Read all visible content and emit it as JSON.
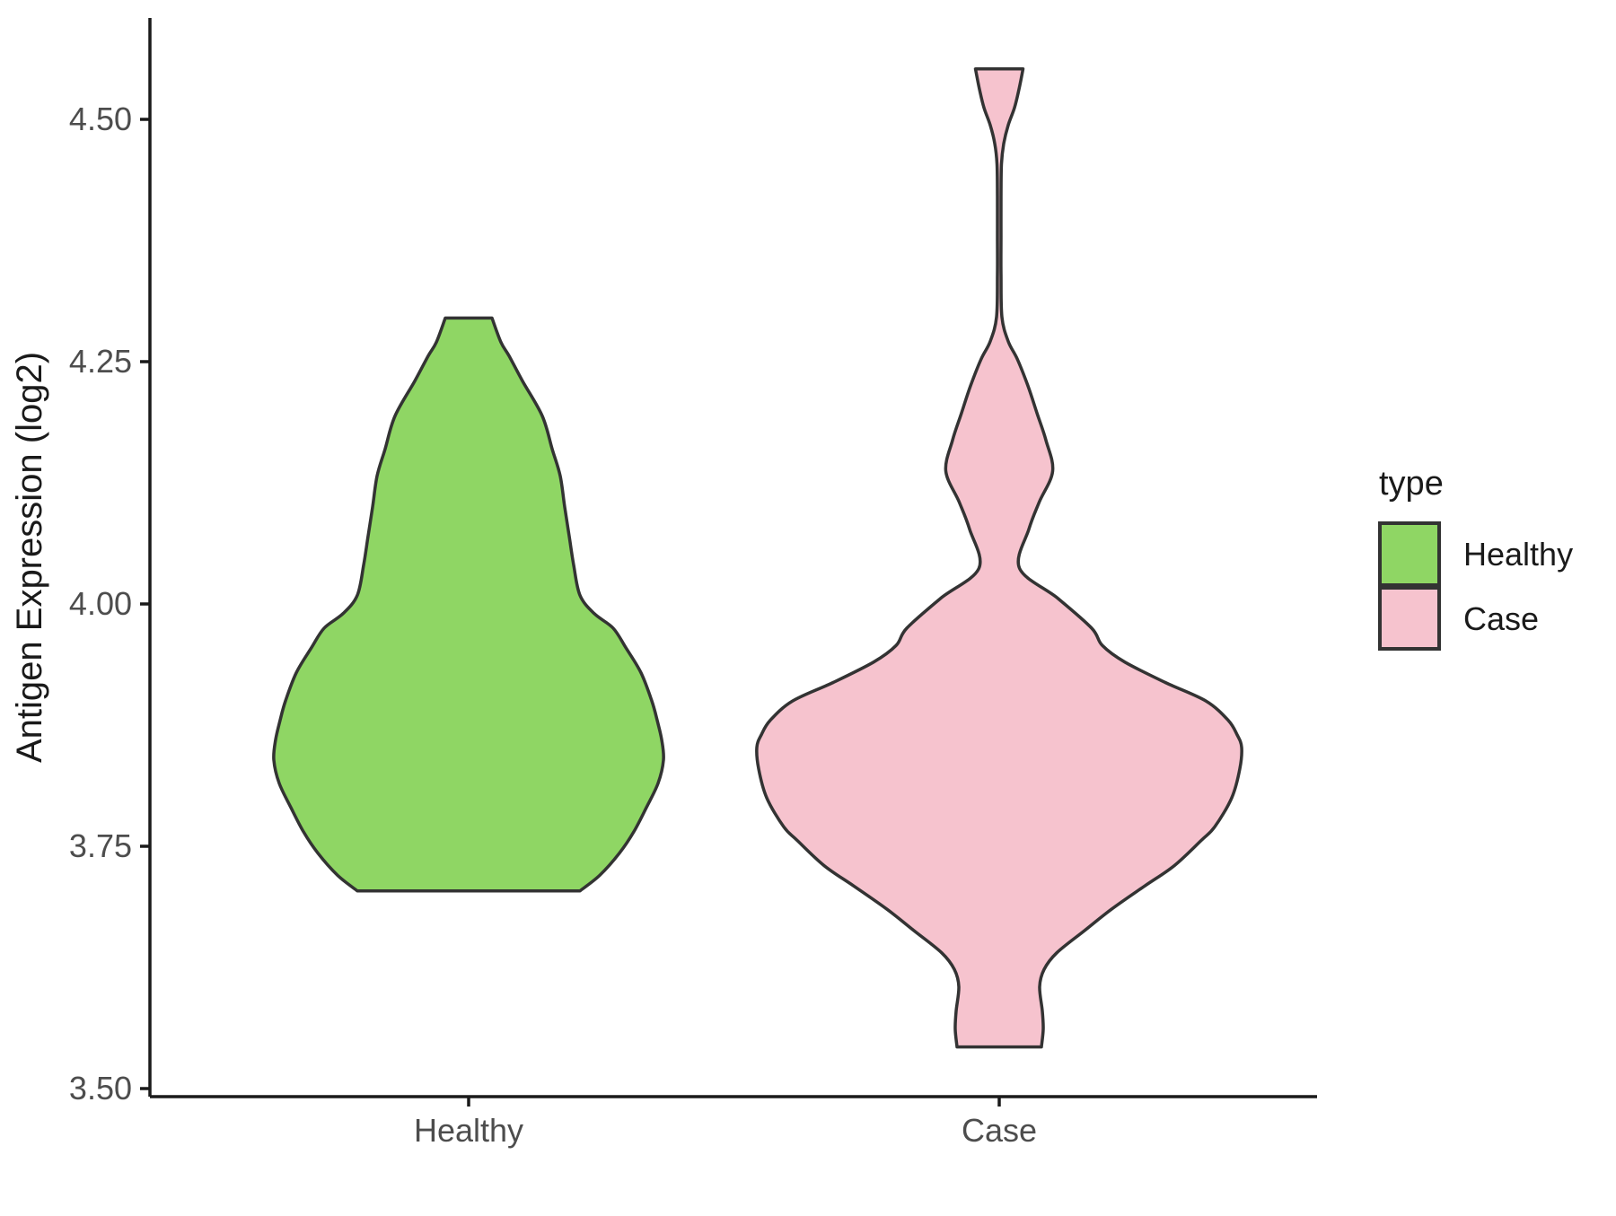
{
  "chart_data": {
    "type": "violin",
    "title": "",
    "y_axis": {
      "label": "Antigen Expression (log2)",
      "ticks": [
        3.5,
        3.75,
        4.0,
        4.25,
        4.5
      ],
      "tick_labels": [
        "3.50",
        "3.75",
        "4.00",
        "4.25",
        "4.50"
      ],
      "range_approx": [
        3.49,
        4.6
      ]
    },
    "x_axis": {
      "categories": [
        "Healthy",
        "Case"
      ]
    },
    "legend": {
      "title": "type",
      "position": "right",
      "entries": [
        {
          "label": "Healthy",
          "color": "#8FD664"
        },
        {
          "label": "Case",
          "color": "#F6C3CE"
        }
      ]
    },
    "grid": false,
    "theme": "classic",
    "series": [
      {
        "name": "Healthy",
        "fill": "#8FD664",
        "outline": "#333333",
        "data_range": [
          3.7,
          4.3
        ],
        "profile": [
          [
            4.295,
            26
          ],
          [
            4.27,
            36
          ],
          [
            4.256,
            45
          ],
          [
            4.23,
            60
          ],
          [
            4.194,
            82
          ],
          [
            4.16,
            93
          ],
          [
            4.132,
            102
          ],
          [
            4.1,
            107
          ],
          [
            4.07,
            112
          ],
          [
            4.04,
            117
          ],
          [
            4.009,
            124
          ],
          [
            3.99,
            140
          ],
          [
            3.975,
            161
          ],
          [
            3.955,
            175
          ],
          [
            3.929,
            192
          ],
          [
            3.9,
            204
          ],
          [
            3.88,
            210
          ],
          [
            3.86,
            215
          ],
          [
            3.839,
            217
          ],
          [
            3.815,
            211
          ],
          [
            3.79,
            198
          ],
          [
            3.765,
            184
          ],
          [
            3.743,
            168
          ],
          [
            3.72,
            146
          ],
          [
            3.704,
            124
          ]
        ]
      },
      {
        "name": "Case",
        "fill": "#F6C3CE",
        "outline": "#333333",
        "data_range": [
          3.54,
          4.55
        ],
        "profile": [
          [
            4.552,
            26.5
          ],
          [
            4.531,
            22
          ],
          [
            4.512,
            17
          ],
          [
            4.494,
            10
          ],
          [
            4.475,
            5
          ],
          [
            4.454,
            2.5
          ],
          [
            4.42,
            2
          ],
          [
            4.38,
            2
          ],
          [
            4.34,
            2
          ],
          [
            4.296,
            3
          ],
          [
            4.271,
            10
          ],
          [
            4.253,
            20
          ],
          [
            4.225,
            32
          ],
          [
            4.197,
            42
          ],
          [
            4.169,
            52
          ],
          [
            4.137,
            59.5
          ],
          [
            4.105,
            44.5
          ],
          [
            4.077,
            33
          ],
          [
            4.037,
            22.5
          ],
          [
            4.006,
            65
          ],
          [
            3.975,
            103
          ],
          [
            3.957,
            115
          ],
          [
            3.94,
            140
          ],
          [
            3.919,
            185
          ],
          [
            3.9,
            230
          ],
          [
            3.88,
            255
          ],
          [
            3.865,
            265
          ],
          [
            3.852,
            270
          ],
          [
            3.83,
            268
          ],
          [
            3.8,
            259
          ],
          [
            3.77,
            240
          ],
          [
            3.756,
            225
          ],
          [
            3.73,
            195
          ],
          [
            3.709,
            162
          ],
          [
            3.685,
            125
          ],
          [
            3.663,
            95
          ],
          [
            3.64,
            64
          ],
          [
            3.623,
            50
          ],
          [
            3.605,
            45
          ],
          [
            3.58,
            48
          ],
          [
            3.561,
            49
          ],
          [
            3.543,
            47
          ]
        ]
      }
    ]
  },
  "colors": {
    "axis_line": "#1a1a1a",
    "tick_mark": "#1a1a1a",
    "tick_text": "#4d4d4d",
    "text": "#1a1a1a",
    "background": "#ffffff"
  }
}
